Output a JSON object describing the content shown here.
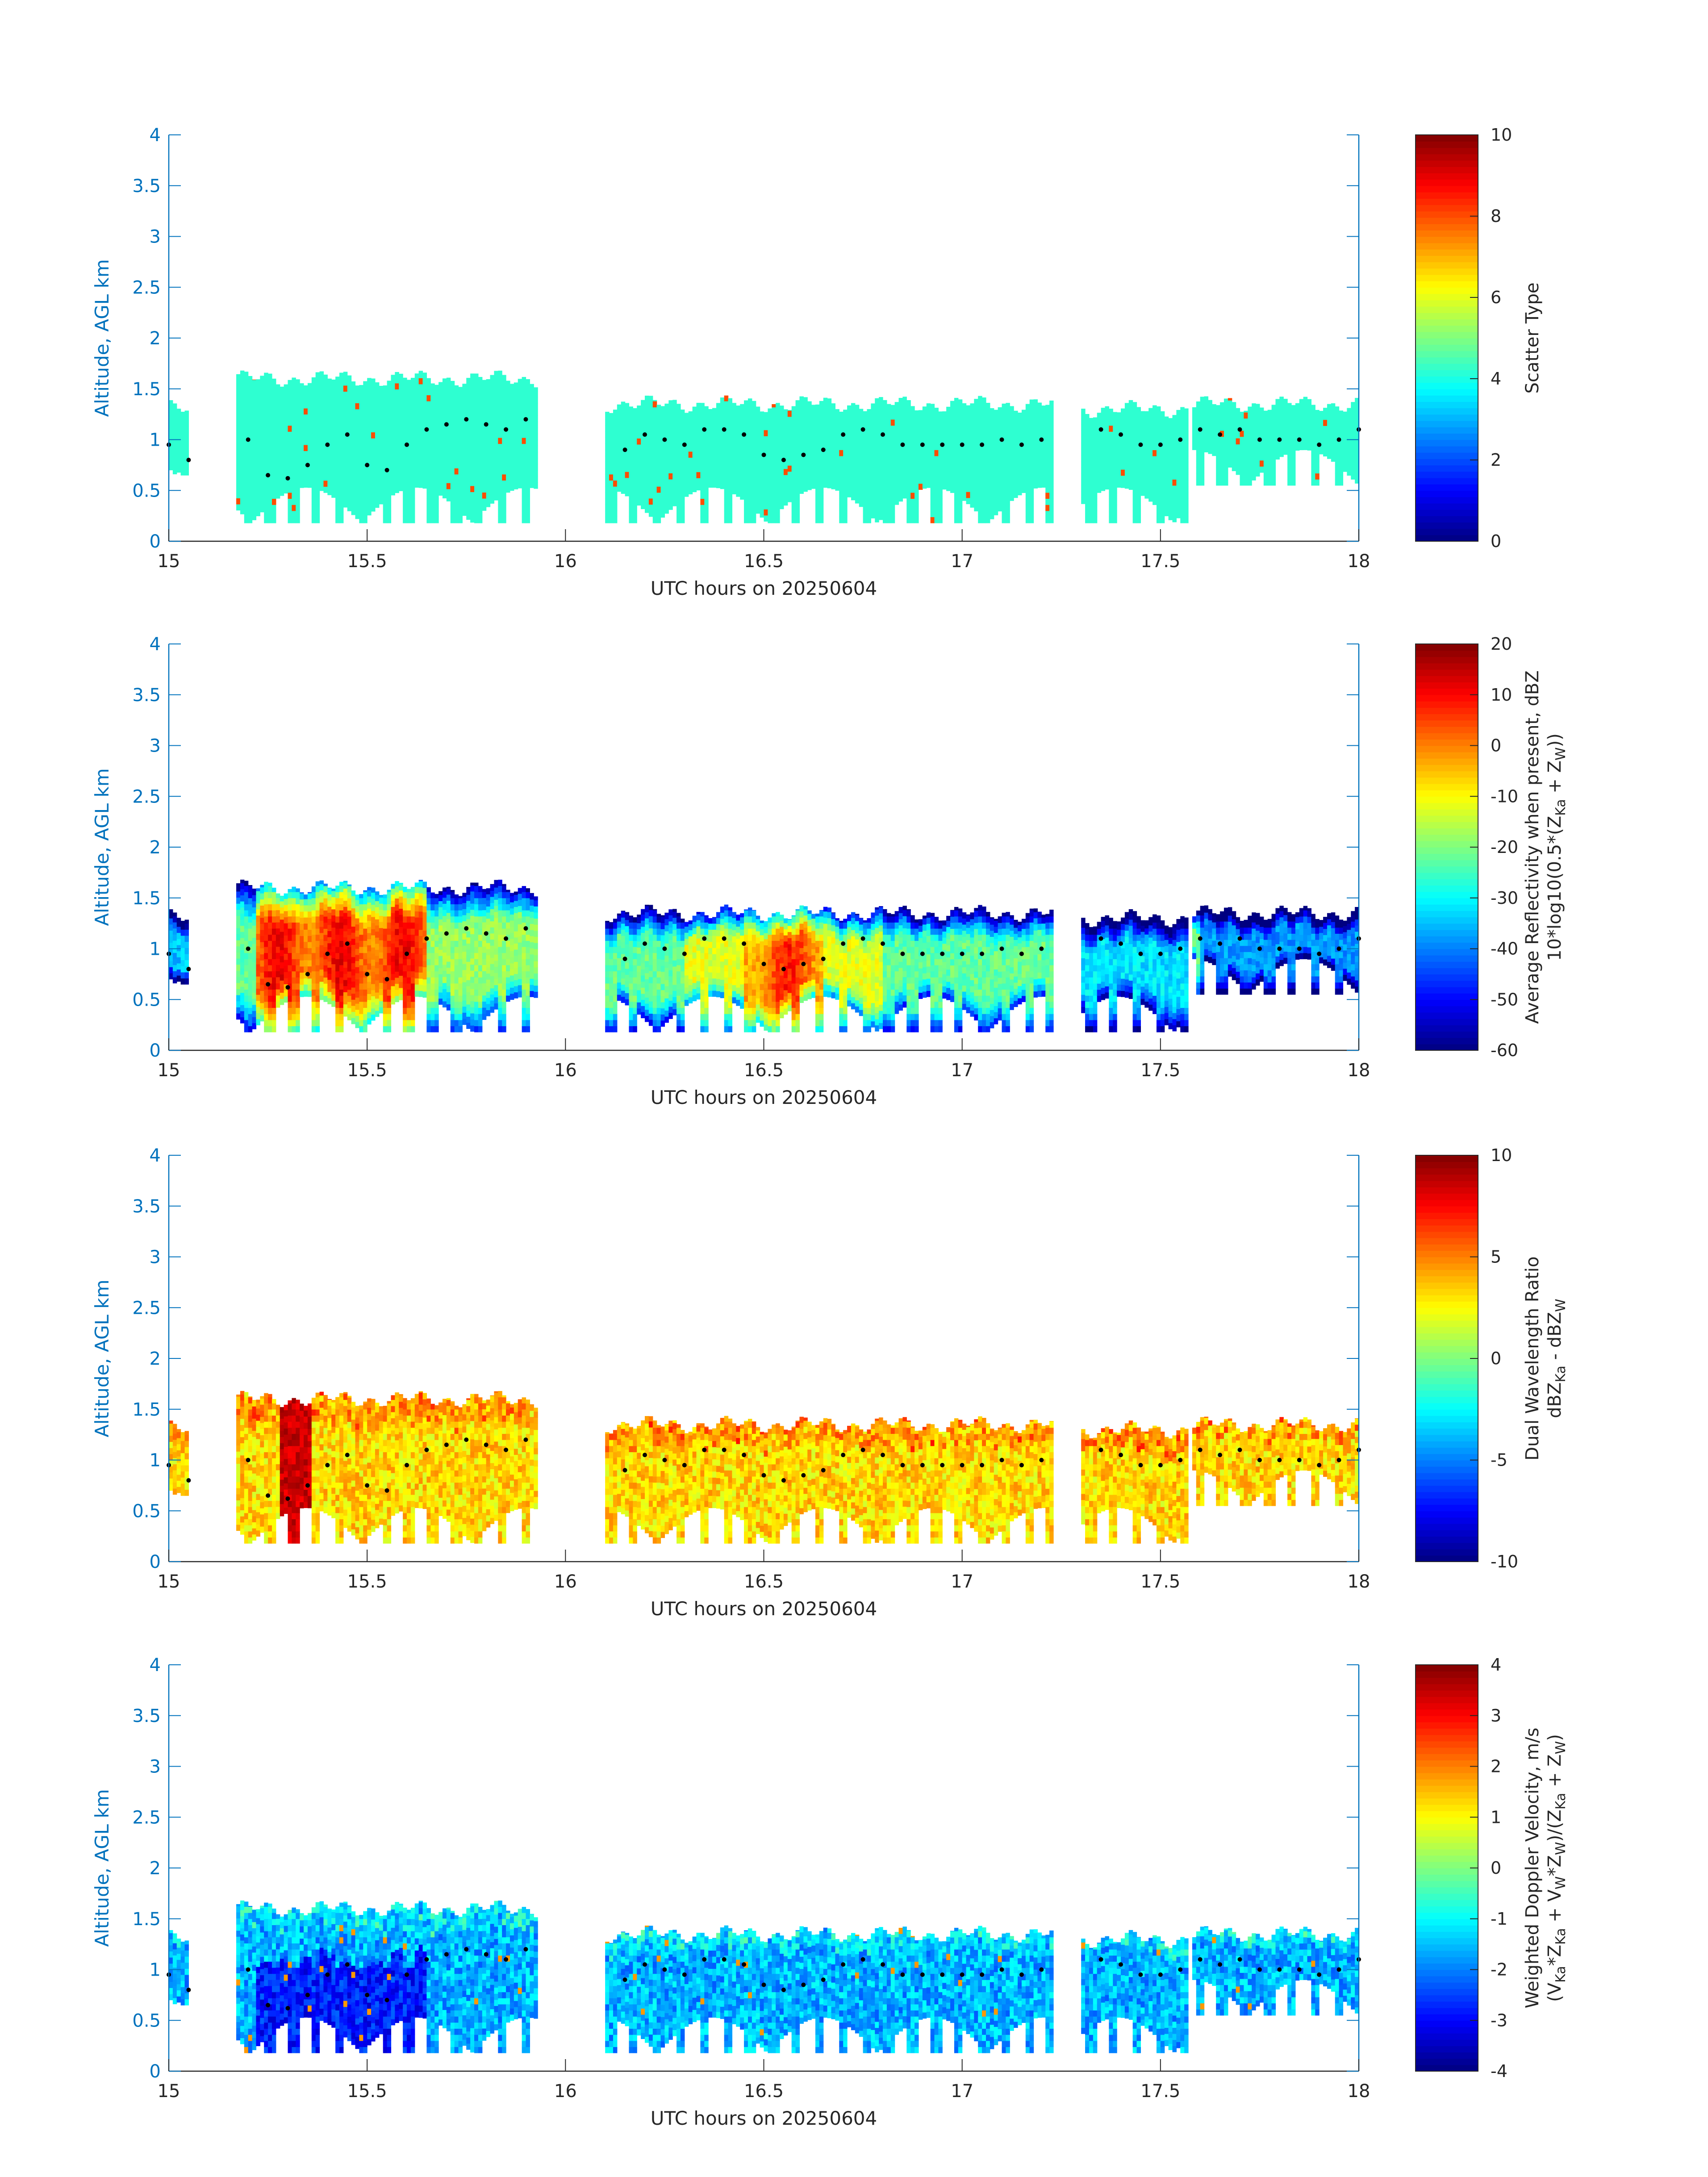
{
  "colors": {
    "axis_blue": "#0072BD",
    "text_dark": "#262626",
    "background": "#ffffff",
    "marker": "#000000"
  },
  "chart_data": [
    {
      "type": "heatmap",
      "id": "scatter_type",
      "title": "",
      "xlabel": "UTC hours on 20250604",
      "ylabel": "Altitude, AGL km",
      "xlim": [
        15,
        18
      ],
      "ylim": [
        0,
        4
      ],
      "xticks": [
        "15",
        "15.5",
        "16",
        "16.5",
        "17",
        "17.5",
        "18"
      ],
      "yticks": [
        "0",
        "0.5",
        "1",
        "1.5",
        "2",
        "2.5",
        "3",
        "3.5",
        "4"
      ],
      "colorbar": {
        "label_lines": [
          "Scatter Type"
        ],
        "clim": [
          0,
          10
        ],
        "ticks": [
          "0",
          "2",
          "4",
          "6",
          "8",
          "10"
        ]
      },
      "segments": [
        {
          "x": [
            15.0,
            15.05
          ],
          "ybase": 0.65,
          "ytop": 1.3
        },
        {
          "x": [
            15.17,
            15.93
          ],
          "ybase": 0.18,
          "ytop": 1.6
        },
        {
          "x": [
            16.1,
            17.23
          ],
          "ybase": 0.18,
          "ytop": 1.35
        },
        {
          "x": [
            17.3,
            17.57
          ],
          "ybase": 0.18,
          "ytop": 1.3
        },
        {
          "x": [
            17.58,
            18.0
          ],
          "ybase": 0.55,
          "ytop": 1.35
        }
      ],
      "dominant_value": 4.2,
      "notes_values": "Mostly scatter type ~4 (cyan) with a few isolated cells near 8 (red) around cloud base."
    },
    {
      "type": "heatmap",
      "id": "reflectivity",
      "title": "",
      "xlabel": "UTC hours on 20250604",
      "ylabel": "Altitude, AGL km",
      "xlim": [
        15,
        18
      ],
      "ylim": [
        0,
        4
      ],
      "xticks": [
        "15",
        "15.5",
        "16",
        "16.5",
        "17",
        "17.5",
        "18"
      ],
      "yticks": [
        "0",
        "0.5",
        "1",
        "1.5",
        "2",
        "2.5",
        "3",
        "3.5",
        "4"
      ],
      "colorbar": {
        "label_lines": [
          "Average Reflectivity when present, dBZ",
          "10*log10(0.5*(Z",
          "Ka",
          " + Z",
          "W",
          "))"
        ],
        "clim": [
          -60,
          20
        ],
        "ticks": [
          "-60",
          "-50",
          "-40",
          "-30",
          "-20",
          "-10",
          "0",
          "10",
          "20"
        ]
      },
      "value_range": [
        -60,
        15
      ]
    },
    {
      "type": "heatmap",
      "id": "dual_wavelength_ratio",
      "title": "",
      "xlabel": "UTC hours on 20250604",
      "ylabel": "Altitude, AGL km",
      "xlim": [
        15,
        18
      ],
      "ylim": [
        0,
        4
      ],
      "xticks": [
        "15",
        "15.5",
        "16",
        "16.5",
        "17",
        "17.5",
        "18"
      ],
      "yticks": [
        "0",
        "0.5",
        "1",
        "1.5",
        "2",
        "2.5",
        "3",
        "3.5",
        "4"
      ],
      "colorbar": {
        "label_lines": [
          "Dual Wavelength Ratio",
          "dBZ",
          "Ka",
          " - dBZ",
          "W"
        ],
        "clim": [
          -10,
          10
        ],
        "ticks": [
          "-10",
          "-5",
          "0",
          "5",
          "10"
        ]
      },
      "value_range": [
        1,
        9
      ]
    },
    {
      "type": "heatmap",
      "id": "doppler_velocity",
      "title": "",
      "xlabel": "UTC hours on 20250604",
      "ylabel": "Altitude, AGL km",
      "xlim": [
        15,
        18
      ],
      "ylim": [
        0,
        4
      ],
      "xticks": [
        "15",
        "15.5",
        "16",
        "16.5",
        "17",
        "17.5",
        "18"
      ],
      "yticks": [
        "0",
        "0.5",
        "1",
        "1.5",
        "2",
        "2.5",
        "3",
        "3.5",
        "4"
      ],
      "colorbar": {
        "label_lines": [
          "Weighted Doppler Velocity, m/s",
          "(V",
          "Ka",
          "*Z",
          "Ka",
          " + V",
          "W",
          "*Z",
          "W",
          ")/(Z",
          "Ka",
          " + Z",
          "W",
          ")"
        ],
        "clim": [
          -4,
          4
        ],
        "ticks": [
          "-4",
          "-3",
          "-2",
          "-1",
          "0",
          "1",
          "2",
          "3",
          "4"
        ]
      },
      "value_range": [
        -3.5,
        2
      ]
    }
  ],
  "cloud_base_series": {
    "name": "",
    "x": [
      15.0,
      15.05,
      15.2,
      15.25,
      15.3,
      15.35,
      15.4,
      15.45,
      15.5,
      15.55,
      15.6,
      15.65,
      15.7,
      15.75,
      15.8,
      15.85,
      15.9,
      16.15,
      16.2,
      16.25,
      16.3,
      16.35,
      16.4,
      16.45,
      16.5,
      16.55,
      16.6,
      16.65,
      16.7,
      16.75,
      16.8,
      16.85,
      16.9,
      16.95,
      17.0,
      17.05,
      17.1,
      17.15,
      17.2,
      17.35,
      17.4,
      17.45,
      17.5,
      17.55,
      17.6,
      17.65,
      17.7,
      17.75,
      17.8,
      17.85,
      17.9,
      17.95,
      18.0
    ],
    "y": [
      0.95,
      0.8,
      1.0,
      0.65,
      0.62,
      0.75,
      0.95,
      1.05,
      0.75,
      0.7,
      0.95,
      1.1,
      1.15,
      1.2,
      1.15,
      1.1,
      1.2,
      0.9,
      1.05,
      1.0,
      0.95,
      1.1,
      1.1,
      1.05,
      0.85,
      0.8,
      0.85,
      0.9,
      1.05,
      1.1,
      1.05,
      0.95,
      0.95,
      0.95,
      0.95,
      0.95,
      1.0,
      0.95,
      1.0,
      1.1,
      1.05,
      0.95,
      0.95,
      1.0,
      1.1,
      1.05,
      1.1,
      1.0,
      1.0,
      1.0,
      0.95,
      1.0,
      1.1
    ]
  }
}
